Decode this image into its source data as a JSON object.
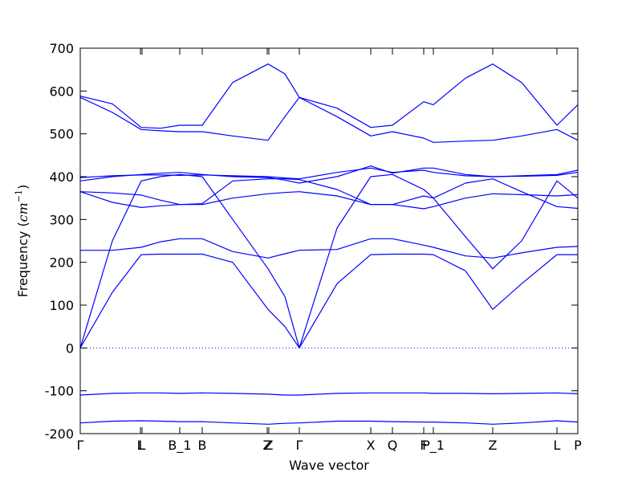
{
  "chart_data": {
    "type": "line",
    "xlabel": "Wave vector",
    "ylabel_parts": [
      "Frequency (",
      "cm",
      "−1",
      ")"
    ],
    "x": [
      0,
      0.4,
      0.76,
      1.0,
      1.24,
      1.52,
      1.9,
      2.34,
      2.55,
      2.73,
      3.2,
      3.62,
      3.89,
      4.28,
      4.4,
      4.8,
      5.14,
      5.5,
      5.94,
      6.2
    ],
    "xlim": [
      0,
      6.2
    ],
    "xticks": [
      {
        "value": 0,
        "label": "Γ"
      },
      {
        "value": 0.75,
        "label": "L"
      },
      {
        "value": 0.77,
        "label": "L"
      },
      {
        "value": 1.24,
        "label": "B_1"
      },
      {
        "value": 1.52,
        "label": "B"
      },
      {
        "value": 2.33,
        "label": "Z"
      },
      {
        "value": 2.35,
        "label": "Z"
      },
      {
        "value": 2.73,
        "label": "Γ"
      },
      {
        "value": 3.62,
        "label": "X"
      },
      {
        "value": 3.89,
        "label": "Q"
      },
      {
        "value": 4.28,
        "label": "F"
      },
      {
        "value": 4.4,
        "label": "P_1"
      },
      {
        "value": 5.14,
        "label": "Z"
      },
      {
        "value": 5.94,
        "label": "L"
      },
      {
        "value": 6.2,
        "label": "P"
      }
    ],
    "ylim": [
      -200,
      700
    ],
    "yticks": [
      -200,
      -100,
      0,
      100,
      200,
      300,
      400,
      500,
      600,
      700
    ],
    "hline": 0,
    "series": [
      {
        "color": "#0000ff",
        "values": [
          -175,
          -171,
          -170,
          -171,
          -172,
          -172,
          -175,
          -178,
          -176,
          -175,
          -171,
          -171,
          -172,
          -173,
          -173,
          -175,
          -178,
          -175,
          -170,
          -173
        ]
      },
      {
        "color": "#0000ff",
        "values": [
          -110,
          -106,
          -105,
          -105,
          -106,
          -105,
          -106,
          -108,
          -110,
          -110,
          -106,
          -105,
          -105,
          -105,
          -106,
          -106,
          -107,
          -106,
          -105,
          -107
        ]
      },
      {
        "color": "#0000ff",
        "values": [
          0,
          130,
          218,
          219,
          219,
          219,
          200,
          90,
          50,
          0,
          150,
          218,
          219,
          219,
          218,
          180,
          90,
          150,
          218,
          218
        ]
      },
      {
        "color": "#0000ff",
        "values": [
          0,
          250,
          390,
          400,
          405,
          400,
          300,
          185,
          120,
          0,
          280,
          400,
          405,
          370,
          350,
          260,
          185,
          250,
          390,
          350
        ]
      },
      {
        "color": "#0000ff",
        "values": [
          228,
          228,
          235,
          248,
          255,
          255,
          225,
          210,
          220,
          228,
          230,
          255,
          255,
          240,
          235,
          215,
          210,
          222,
          235,
          237
        ]
      },
      {
        "color": "#0000ff",
        "values": [
          365,
          362,
          357,
          345,
          335,
          335,
          350,
          360,
          363,
          365,
          355,
          335,
          335,
          325,
          330,
          350,
          360,
          358,
          355,
          358
        ]
      },
      {
        "color": "#0000ff",
        "values": [
          365,
          340,
          328,
          332,
          335,
          337,
          390,
          395,
          395,
          393,
          370,
          335,
          335,
          355,
          350,
          385,
          395,
          365,
          330,
          326
        ]
      },
      {
        "color": "#0000ff",
        "values": [
          390,
          400,
          405,
          408,
          410,
          405,
          400,
          398,
          392,
          385,
          400,
          425,
          408,
          420,
          420,
          405,
          400,
          402,
          405,
          415
        ]
      },
      {
        "color": "#0000ff",
        "values": [
          398,
          402,
          404,
          404,
          403,
          404,
          402,
          400,
          397,
          395,
          410,
          420,
          410,
          415,
          410,
          402,
          400,
          401,
          403,
          410
        ]
      },
      {
        "color": "#0000ff",
        "values": [
          585,
          550,
          510,
          507,
          505,
          505,
          495,
          485,
          540,
          585,
          540,
          495,
          505,
          490,
          480,
          483,
          485,
          495,
          510,
          485
        ]
      },
      {
        "color": "#0000ff",
        "values": [
          588,
          570,
          515,
          513,
          520,
          520,
          620,
          663,
          640,
          585,
          560,
          515,
          520,
          575,
          568,
          630,
          663,
          620,
          520,
          568
        ]
      }
    ]
  }
}
